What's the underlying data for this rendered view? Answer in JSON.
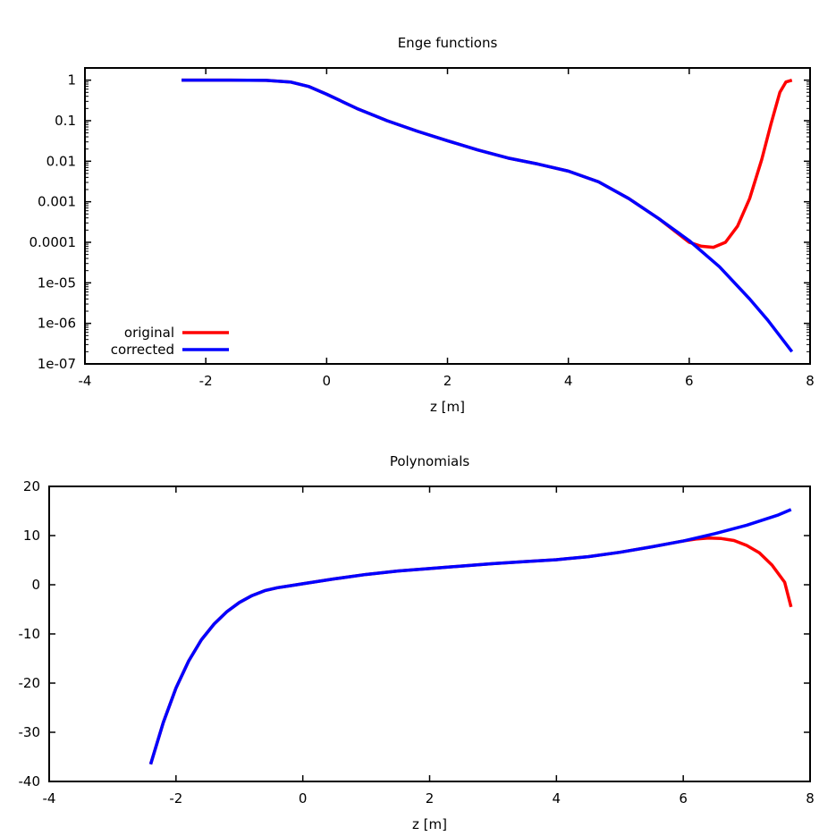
{
  "chart_data": [
    {
      "type": "line",
      "title": "Enge functions",
      "xlabel": "z [m]",
      "ylabel": "",
      "yscale": "log",
      "xlim": [
        -4,
        8
      ],
      "ylim": [
        1e-07,
        2
      ],
      "x_ticks": [
        -4,
        -2,
        0,
        2,
        4,
        6,
        8
      ],
      "x_tick_labels": [
        "-4",
        "-2",
        "0",
        "2",
        "4",
        "6",
        "8"
      ],
      "y_ticks": [
        1,
        0.1,
        0.01,
        0.001,
        0.0001,
        1e-05,
        1e-06,
        1e-07
      ],
      "y_tick_labels": [
        "1",
        "0.1",
        "0.01",
        "0.001",
        "0.0001",
        "1e-05",
        "1e-06",
        "1e-07"
      ],
      "legend_position": "bottom-left",
      "series": [
        {
          "name": "original",
          "color": "#ff0000",
          "x": [
            -2.4,
            -1.6,
            -1.0,
            -0.6,
            -0.3,
            0,
            0.5,
            1.0,
            1.5,
            2.0,
            2.5,
            3.0,
            3.5,
            4.0,
            4.5,
            5.0,
            5.5,
            5.8,
            6.0,
            6.2,
            6.4,
            6.6,
            6.8,
            7.0,
            7.2,
            7.35,
            7.5,
            7.6,
            7.7
          ],
          "y": [
            1,
            1,
            0.99,
            0.9,
            0.7,
            0.45,
            0.2,
            0.1,
            0.055,
            0.032,
            0.019,
            0.012,
            0.0085,
            0.0057,
            0.0031,
            0.0012,
            0.00038,
            0.00017,
            0.0001,
            8e-05,
            7.5e-05,
            0.0001,
            0.00025,
            0.0012,
            0.011,
            0.08,
            0.5,
            0.9,
            1.0
          ]
        },
        {
          "name": "corrected",
          "color": "#0000ff",
          "x": [
            -2.4,
            -1.6,
            -1.0,
            -0.6,
            -0.3,
            0,
            0.5,
            1.0,
            1.5,
            2.0,
            2.5,
            3.0,
            3.5,
            4.0,
            4.5,
            5.0,
            5.5,
            6.0,
            6.5,
            7.0,
            7.3,
            7.7
          ],
          "y": [
            1,
            1,
            0.99,
            0.9,
            0.7,
            0.45,
            0.2,
            0.1,
            0.055,
            0.032,
            0.019,
            0.012,
            0.0085,
            0.0057,
            0.0031,
            0.0012,
            0.00038,
            0.00011,
            2.5e-05,
            4e-06,
            1.2e-06,
            2e-07
          ]
        }
      ]
    },
    {
      "type": "line",
      "title": "Polynomials",
      "xlabel": "z [m]",
      "ylabel": "",
      "yscale": "linear",
      "xlim": [
        -4,
        8
      ],
      "ylim": [
        -40,
        20
      ],
      "x_ticks": [
        -4,
        -2,
        0,
        2,
        4,
        6,
        8
      ],
      "x_tick_labels": [
        "-4",
        "-2",
        "0",
        "2",
        "4",
        "6",
        "8"
      ],
      "y_ticks": [
        20,
        10,
        0,
        -10,
        -20,
        -30,
        -40
      ],
      "y_tick_labels": [
        "20",
        "10",
        "0",
        "-10",
        "-20",
        "-30",
        "-40"
      ],
      "series": [
        {
          "name": "original",
          "color": "#ff0000",
          "x": [
            -2.4,
            -2.2,
            -2.0,
            -1.8,
            -1.6,
            -1.4,
            -1.2,
            -1.0,
            -0.8,
            -0.6,
            -0.4,
            -0.2,
            0,
            0.5,
            1.0,
            1.5,
            2.0,
            2.5,
            3.0,
            3.5,
            4.0,
            4.5,
            5.0,
            5.5,
            6.0,
            6.2,
            6.4,
            6.6,
            6.8,
            7.0,
            7.2,
            7.4,
            7.6,
            7.7
          ],
          "y": [
            -36.5,
            -28,
            -21,
            -15.5,
            -11.2,
            -8,
            -5.5,
            -3.6,
            -2.2,
            -1.2,
            -0.6,
            -0.2,
            0.2,
            1.2,
            2.1,
            2.8,
            3.3,
            3.8,
            4.3,
            4.7,
            5.1,
            5.7,
            6.6,
            7.7,
            8.9,
            9.3,
            9.5,
            9.4,
            9.0,
            8.0,
            6.5,
            4.0,
            0.5,
            -4.5
          ]
        },
        {
          "name": "corrected",
          "color": "#0000ff",
          "x": [
            -2.4,
            -2.2,
            -2.0,
            -1.8,
            -1.6,
            -1.4,
            -1.2,
            -1.0,
            -0.8,
            -0.6,
            -0.4,
            -0.2,
            0,
            0.5,
            1.0,
            1.5,
            2.0,
            2.5,
            3.0,
            3.5,
            4.0,
            4.5,
            5.0,
            5.5,
            6.0,
            6.5,
            7.0,
            7.5,
            7.7
          ],
          "y": [
            -36.5,
            -28,
            -21,
            -15.5,
            -11.2,
            -8,
            -5.5,
            -3.6,
            -2.2,
            -1.2,
            -0.6,
            -0.2,
            0.2,
            1.2,
            2.1,
            2.8,
            3.3,
            3.8,
            4.3,
            4.7,
            5.1,
            5.7,
            6.6,
            7.7,
            8.9,
            10.4,
            12.1,
            14.2,
            15.3
          ]
        }
      ]
    }
  ]
}
